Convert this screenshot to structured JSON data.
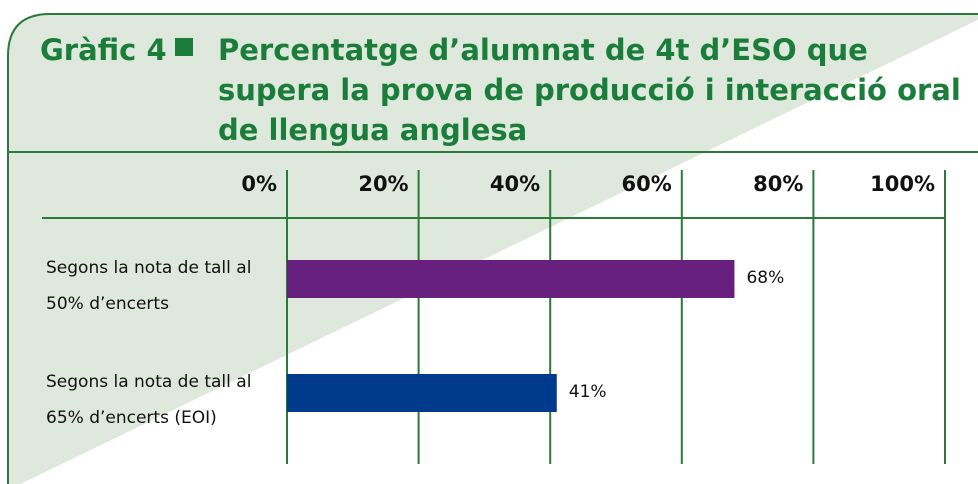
{
  "chart_data": {
    "type": "bar",
    "orientation": "horizontal",
    "label": "Gràfic 4",
    "title": "Percentatge d’alumnat de 4t d’ESO que supera la prova de producció i interacció oral de llengua anglesa",
    "categories": [
      "Segons la nota de tall al 50% d’encerts",
      "Segons la nota de tall al 65% d’encerts (EOI)"
    ],
    "values": [
      68,
      41
    ],
    "value_labels": [
      "68%",
      "41%"
    ],
    "colors": [
      "#68207f",
      "#003a8c"
    ],
    "xlim": [
      0,
      100
    ],
    "xticks": [
      {
        "value": 0,
        "label": "0%"
      },
      {
        "value": 20,
        "label": "20%"
      },
      {
        "value": 40,
        "label": "40%"
      },
      {
        "value": 60,
        "label": "60%"
      },
      {
        "value": 80,
        "label": "80%"
      },
      {
        "value": 100,
        "label": "100%"
      }
    ],
    "grid": true
  }
}
